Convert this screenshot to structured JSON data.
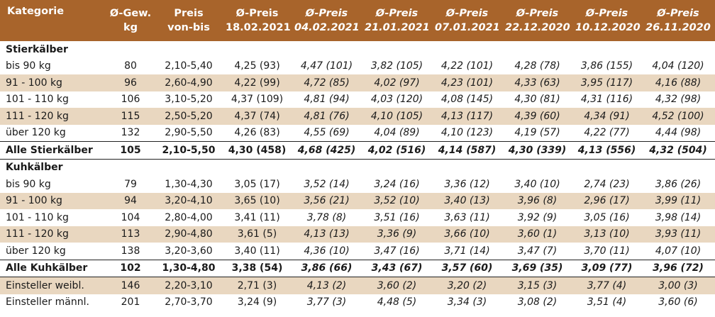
{
  "headers": [
    {
      "line1": "Kategorie",
      "line2": ""
    },
    {
      "line1": "Ø-Gew.",
      "line2": "kg"
    },
    {
      "line1": "Preis",
      "line2": "von-bis"
    },
    {
      "line1": "Ø-Preis",
      "line2": "18.02.2021"
    },
    {
      "line1": "Ø-Preis",
      "line2": "04.02.2021"
    },
    {
      "line1": "Ø-Preis",
      "line2": "21.01.2021"
    },
    {
      "line1": "Ø-Preis",
      "line2": "07.01.2021"
    },
    {
      "line1": "Ø-Preis",
      "line2": "22.12.2020"
    },
    {
      "line1": "Ø-Preis",
      "line2": "10.12.2020"
    },
    {
      "line1": "Ø-Preis",
      "line2": "26.11.2020"
    }
  ],
  "rows": [
    {
      "type": "section",
      "cells": [
        "Stierkälber",
        "",
        "",
        "",
        "",
        "",
        "",
        "",
        "",
        ""
      ]
    },
    {
      "type": "odd",
      "cells": [
        "bis 90 kg",
        "80",
        "2,10-5,40",
        "4,25 (93)",
        "4,47 (101)",
        "3,82 (105)",
        "4,22 (101)",
        "4,28 (78)",
        "3,86 (155)",
        "4,04 (120)"
      ]
    },
    {
      "type": "even",
      "cells": [
        "91 - 100 kg",
        "96",
        "2,60-4,90",
        "4,22 (99)",
        "4,72 (85)",
        "4,02 (97)",
        "4,23 (101)",
        "4,33 (63)",
        "3,95 (117)",
        "4,16 (88)"
      ]
    },
    {
      "type": "odd",
      "cells": [
        "101 - 110 kg",
        "106",
        "3,10-5,20",
        "4,37 (109)",
        "4,81 (94)",
        "4,03 (120)",
        "4,08 (145)",
        "4,30 (81)",
        "4,31 (116)",
        "4,32 (98)"
      ]
    },
    {
      "type": "even",
      "cells": [
        "111 - 120 kg",
        "115",
        "2,50-5,20",
        "4,37 (74)",
        "4,81 (76)",
        "4,10 (105)",
        "4,13 (117)",
        "4,39 (60)",
        "4,34 (91)",
        "4,52 (100)"
      ]
    },
    {
      "type": "odd",
      "cells": [
        "über 120 kg",
        "132",
        "2,90-5,50",
        "4,26 (83)",
        "4,55 (69)",
        "4,04 (89)",
        "4,10 (123)",
        "4,19 (57)",
        "4,22 (77)",
        "4,44 (98)"
      ]
    },
    {
      "type": "total",
      "cells": [
        "Alle Stierkälber",
        "105",
        "2,10-5,50",
        "4,30 (458)",
        "4,68 (425)",
        "4,02 (516)",
        "4,14 (587)",
        "4,30 (339)",
        "4,13 (556)",
        "4,32 (504)"
      ]
    },
    {
      "type": "section",
      "cells": [
        "Kuhkälber",
        "",
        "",
        "",
        "",
        "",
        "",
        "",
        "",
        ""
      ]
    },
    {
      "type": "odd",
      "cells": [
        "bis 90 kg",
        "79",
        "1,30-4,30",
        "3,05 (17)",
        "3,52 (14)",
        "3,24 (16)",
        "3,36 (12)",
        "3,40 (10)",
        "2,74 (23)",
        "3,86 (26)"
      ]
    },
    {
      "type": "even",
      "cells": [
        "91 - 100 kg",
        "94",
        "3,20-4,10",
        "3,65 (10)",
        "3,56 (21)",
        "3,52 (10)",
        "3,40 (13)",
        "3,96 (8)",
        "2,96 (17)",
        "3,99 (11)"
      ]
    },
    {
      "type": "odd",
      "cells": [
        "101 - 110 kg",
        "104",
        "2,80-4,00",
        "3,41 (11)",
        "3,78 (8)",
        "3,51 (16)",
        "3,63 (11)",
        "3,92 (9)",
        "3,05 (16)",
        "3,98 (14)"
      ]
    },
    {
      "type": "even",
      "cells": [
        "111 - 120 kg",
        "113",
        "2,90-4,80",
        "3,61 (5)",
        "4,13 (13)",
        "3,36 (9)",
        "3,66 (10)",
        "3,60 (1)",
        "3,13 (10)",
        "3,93 (11)"
      ]
    },
    {
      "type": "odd",
      "cells": [
        "über 120 kg",
        "138",
        "3,20-3,60",
        "3,40 (11)",
        "4,36 (10)",
        "3,47 (16)",
        "3,71 (14)",
        "3,47 (7)",
        "3,70 (11)",
        "4,07 (10)"
      ]
    },
    {
      "type": "total",
      "cells": [
        "Alle Kuhkälber",
        "102",
        "1,30-4,80",
        "3,38 (54)",
        "3,86 (66)",
        "3,43 (67)",
        "3,57 (60)",
        "3,69 (35)",
        "3,09 (77)",
        "3,96 (72)"
      ]
    },
    {
      "type": "footer",
      "cells": [
        "Einsteller weibl.",
        "146",
        "2,20-3,10",
        "2,71 (3)",
        "4,13 (2)",
        "3,60 (2)",
        "3,20 (2)",
        "3,15 (3)",
        "3,77 (4)",
        "3,00 (3)"
      ]
    },
    {
      "type": "odd",
      "cells": [
        "Einsteller männl.",
        "201",
        "2,70-3,70",
        "3,24 (9)",
        "3,77 (3)",
        "4,48 (5)",
        "3,34 (3)",
        "3,08 (2)",
        "3,51 (4)",
        "3,60 (6)"
      ]
    }
  ]
}
